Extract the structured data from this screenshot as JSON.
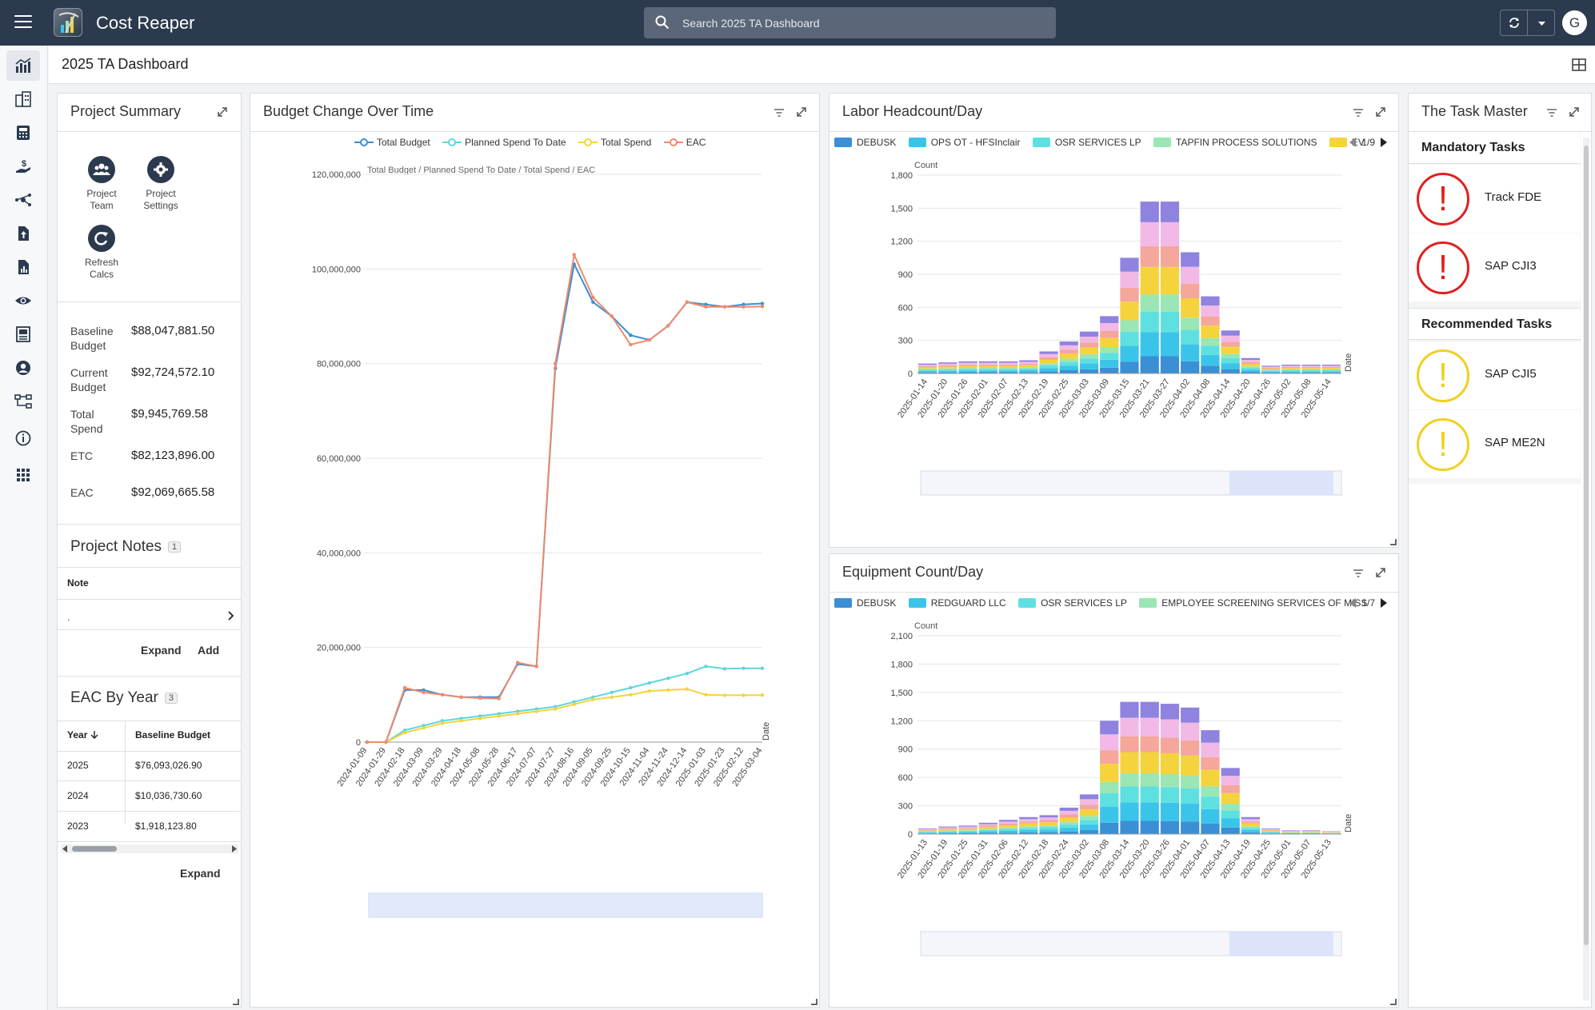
{
  "app": {
    "title": "Cost Reaper",
    "search_placeholder": "Search 2025 TA Dashboard",
    "avatar_letter": "G"
  },
  "page": {
    "title": "2025 TA Dashboard"
  },
  "sidebar": {
    "items": [
      "dashboard-icon",
      "buildings-icon",
      "calculator-icon",
      "hand-dollar-icon",
      "network-icon",
      "file-upload-icon",
      "report-icon",
      "eye-icon",
      "ledger-icon",
      "user-circle-icon",
      "workflow-icon",
      "info-icon",
      "apps-grid-icon"
    ]
  },
  "project_summary": {
    "title": "Project Summary",
    "buttons": [
      {
        "label_1": "Project",
        "label_2": "Team"
      },
      {
        "label_1": "Project",
        "label_2": "Settings"
      },
      {
        "label_1": "Refresh",
        "label_2": "Calcs"
      }
    ],
    "metrics": [
      {
        "label": "Baseline Budget",
        "value": "$88,047,881.50"
      },
      {
        "label": "Current Budget",
        "value": "$92,724,572.10"
      },
      {
        "label": "Total Spend",
        "value": "$9,945,769.58"
      },
      {
        "label": "ETC",
        "value": "$82,123,896.00"
      },
      {
        "label": "EAC",
        "value": "$92,069,665.58"
      }
    ]
  },
  "project_notes": {
    "title": "Project Notes",
    "count": "1",
    "column": "Note",
    "row_value": ".",
    "expand": "Expand",
    "add": "Add"
  },
  "eac_by_year": {
    "title": "EAC By Year",
    "count": "3",
    "columns": [
      "Year",
      "Baseline Budget"
    ],
    "rows": [
      {
        "year": "2025",
        "value": "$76,093,026.90"
      },
      {
        "year": "2024",
        "value": "$10,036,730.60"
      },
      {
        "year": "2023",
        "value": "$1,918,123.80"
      }
    ],
    "expand": "Expand"
  },
  "budget_panel": {
    "title": "Budget Change Over Time"
  },
  "labor_panel": {
    "title": "Labor Headcount/Day",
    "pager": "1/9"
  },
  "equip_panel": {
    "title": "Equipment Count/Day",
    "pager": "1/7"
  },
  "task_master": {
    "title": "The Task Master",
    "mandatory_title": "Mandatory Tasks",
    "recommended_title": "Recommended Tasks",
    "mandatory": [
      "Track FDE",
      "SAP CJI3"
    ],
    "recommended": [
      "SAP CJI5",
      "SAP ME2N"
    ],
    "colors": {
      "mandatory": "#e02020",
      "recommended": "#f0d020"
    }
  },
  "chart_data": [
    {
      "type": "line",
      "subtitle": "Total Budget / Planned Spend To Date / Total Spend / EAC",
      "xlabel": "Date",
      "ylim": [
        0,
        120000000
      ],
      "yticks": [
        "0",
        "20,000,000",
        "40,000,000",
        "60,000,000",
        "80,000,000",
        "100,000,000",
        "120,000,000"
      ],
      "x": [
        "2024-01-09",
        "2024-01-29",
        "2024-02-18",
        "2024-03-09",
        "2024-03-29",
        "2024-04-18",
        "2024-05-08",
        "2024-05-28",
        "2024-06-17",
        "2024-07-07",
        "2024-07-27",
        "2024-08-16",
        "2024-09-05",
        "2024-09-25",
        "2024-10-15",
        "2024-11-04",
        "2024-11-24",
        "2024-12-14",
        "2025-01-03",
        "2025-01-23",
        "2025-02-12",
        "2025-03-04"
      ],
      "series": [
        {
          "name": "Total Budget",
          "color": "#3b8fd4",
          "values": [
            0,
            0,
            11000000,
            11000000,
            10000000,
            9500000,
            9500000,
            9500000,
            16500000,
            16000000,
            79000000,
            101000000,
            93000000,
            90000000,
            86000000,
            85000000,
            88000000,
            93000000,
            92500000,
            92000000,
            92500000,
            92700000
          ]
        },
        {
          "name": "Planned Spend To Date",
          "color": "#5ed6e0",
          "values": [
            0,
            0,
            2500000,
            3500000,
            4500000,
            5000000,
            5500000,
            6000000,
            6500000,
            7000000,
            7500000,
            8500000,
            9500000,
            10500000,
            11500000,
            12500000,
            13500000,
            14500000,
            16000000,
            15500000,
            15600000,
            15600000
          ]
        },
        {
          "name": "Total Spend",
          "color": "#f5d33c",
          "values": [
            0,
            0,
            2000000,
            3000000,
            4000000,
            4500000,
            5000000,
            5500000,
            6000000,
            6500000,
            7000000,
            8000000,
            9000000,
            9500000,
            10000000,
            10800000,
            11000000,
            11200000,
            10000000,
            9900000,
            9900000,
            9945770
          ]
        },
        {
          "name": "EAC",
          "color": "#f08a6a",
          "values": [
            0,
            0,
            11500000,
            10500000,
            10000000,
            9500000,
            9300000,
            9200000,
            16800000,
            16000000,
            80000000,
            103000000,
            94000000,
            90000000,
            84000000,
            85000000,
            88000000,
            93000000,
            92000000,
            92000000,
            92000000,
            92070000
          ]
        }
      ]
    },
    {
      "type": "bar",
      "stacked": true,
      "ylabel": "Count",
      "xlabel": "Date",
      "ylim": [
        0,
        1800
      ],
      "yticks": [
        "0",
        "300",
        "600",
        "900",
        "1,200",
        "1,500",
        "1,800"
      ],
      "x_ticks": [
        "2025-01-14",
        "2025-01-20",
        "2025-01-26",
        "2025-02-01",
        "2025-02-07",
        "2025-02-13",
        "2025-02-19",
        "2025-02-25",
        "2025-03-03",
        "2025-03-09",
        "2025-03-15",
        "2025-03-21",
        "2025-03-27",
        "2025-04-02",
        "2025-04-08",
        "2025-04-14",
        "2025-04-20",
        "2025-04-26",
        "2025-05-02",
        "2025-05-08",
        "2025-05-14"
      ],
      "legend": [
        "DEBUSK",
        "OPS OT - HFSInclair",
        "OSR SERVICES LP",
        "TAPFIN PROCESS SOLUTIONS",
        "EV"
      ],
      "colors": [
        "#3b8fd4",
        "#3bc4ea",
        "#5ee0e0",
        "#9ae6b4",
        "#f5d33c",
        "#f4a79a",
        "#f2b8e6",
        "#8f83e0"
      ],
      "totals": [
        90,
        100,
        110,
        110,
        110,
        120,
        200,
        290,
        380,
        520,
        1050,
        1560,
        1560,
        1100,
        700,
        390,
        140,
        70,
        80,
        80,
        80
      ]
    },
    {
      "type": "bar",
      "stacked": true,
      "ylabel": "Count",
      "xlabel": "Date",
      "ylim": [
        0,
        2100
      ],
      "yticks": [
        "0",
        "300",
        "600",
        "900",
        "1,200",
        "1,500",
        "1,800",
        "2,100"
      ],
      "x_ticks": [
        "2025-01-13",
        "2025-01-19",
        "2025-01-25",
        "2025-01-31",
        "2025-02-06",
        "2025-02-12",
        "2025-02-18",
        "2025-02-24",
        "2025-03-02",
        "2025-03-08",
        "2025-03-14",
        "2025-03-20",
        "2025-03-26",
        "2025-04-01",
        "2025-04-07",
        "2025-04-13",
        "2025-04-19",
        "2025-04-25",
        "2025-05-01",
        "2025-05-07",
        "2025-05-13"
      ],
      "legend": [
        "DEBUSK",
        "REDGUARD LLC",
        "OSR SERVICES LP",
        "EMPLOYEE SCREENING SERVICES OF MISS"
      ],
      "colors": [
        "#3b8fd4",
        "#3bc4ea",
        "#5ee0e0",
        "#9ae6b4",
        "#f5d33c",
        "#f4a79a",
        "#f2b8e6",
        "#8f83e0"
      ],
      "totals": [
        60,
        80,
        90,
        120,
        150,
        180,
        200,
        280,
        420,
        1200,
        1400,
        1400,
        1380,
        1340,
        1100,
        700,
        180,
        60,
        40,
        40,
        30
      ]
    }
  ]
}
